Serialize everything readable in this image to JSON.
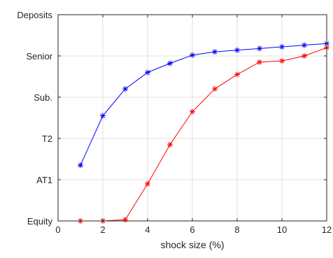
{
  "chart_data": {
    "type": "line",
    "title": "",
    "xlabel": "shock size (%)",
    "ylabel": "",
    "xlim": [
      0,
      12
    ],
    "ylim": [
      0,
      5
    ],
    "grid": true,
    "x_ticks": [
      0,
      2,
      4,
      6,
      8,
      10,
      12
    ],
    "y_ticks": [
      0,
      1,
      2,
      3,
      4,
      5
    ],
    "y_tick_labels": [
      "Equity",
      "AT1",
      "T2",
      "Sub.",
      "Senior",
      "Deposits"
    ],
    "series": [
      {
        "color": "#0000ff",
        "marker": "asterisk",
        "x": [
          1,
          2,
          3,
          4,
          5,
          6,
          7,
          8,
          9,
          10,
          11,
          12
        ],
        "y": [
          1.35,
          2.55,
          3.2,
          3.6,
          3.82,
          4.02,
          4.1,
          4.14,
          4.18,
          4.22,
          4.26,
          4.3
        ]
      },
      {
        "color": "#ff0000",
        "marker": "asterisk",
        "x": [
          1,
          2,
          3,
          4,
          5,
          6,
          7,
          8,
          9,
          10,
          11,
          12
        ],
        "y": [
          0.0,
          0.0,
          0.03,
          0.9,
          1.85,
          2.65,
          3.2,
          3.55,
          3.85,
          3.88,
          4.0,
          4.2
        ]
      }
    ]
  }
}
